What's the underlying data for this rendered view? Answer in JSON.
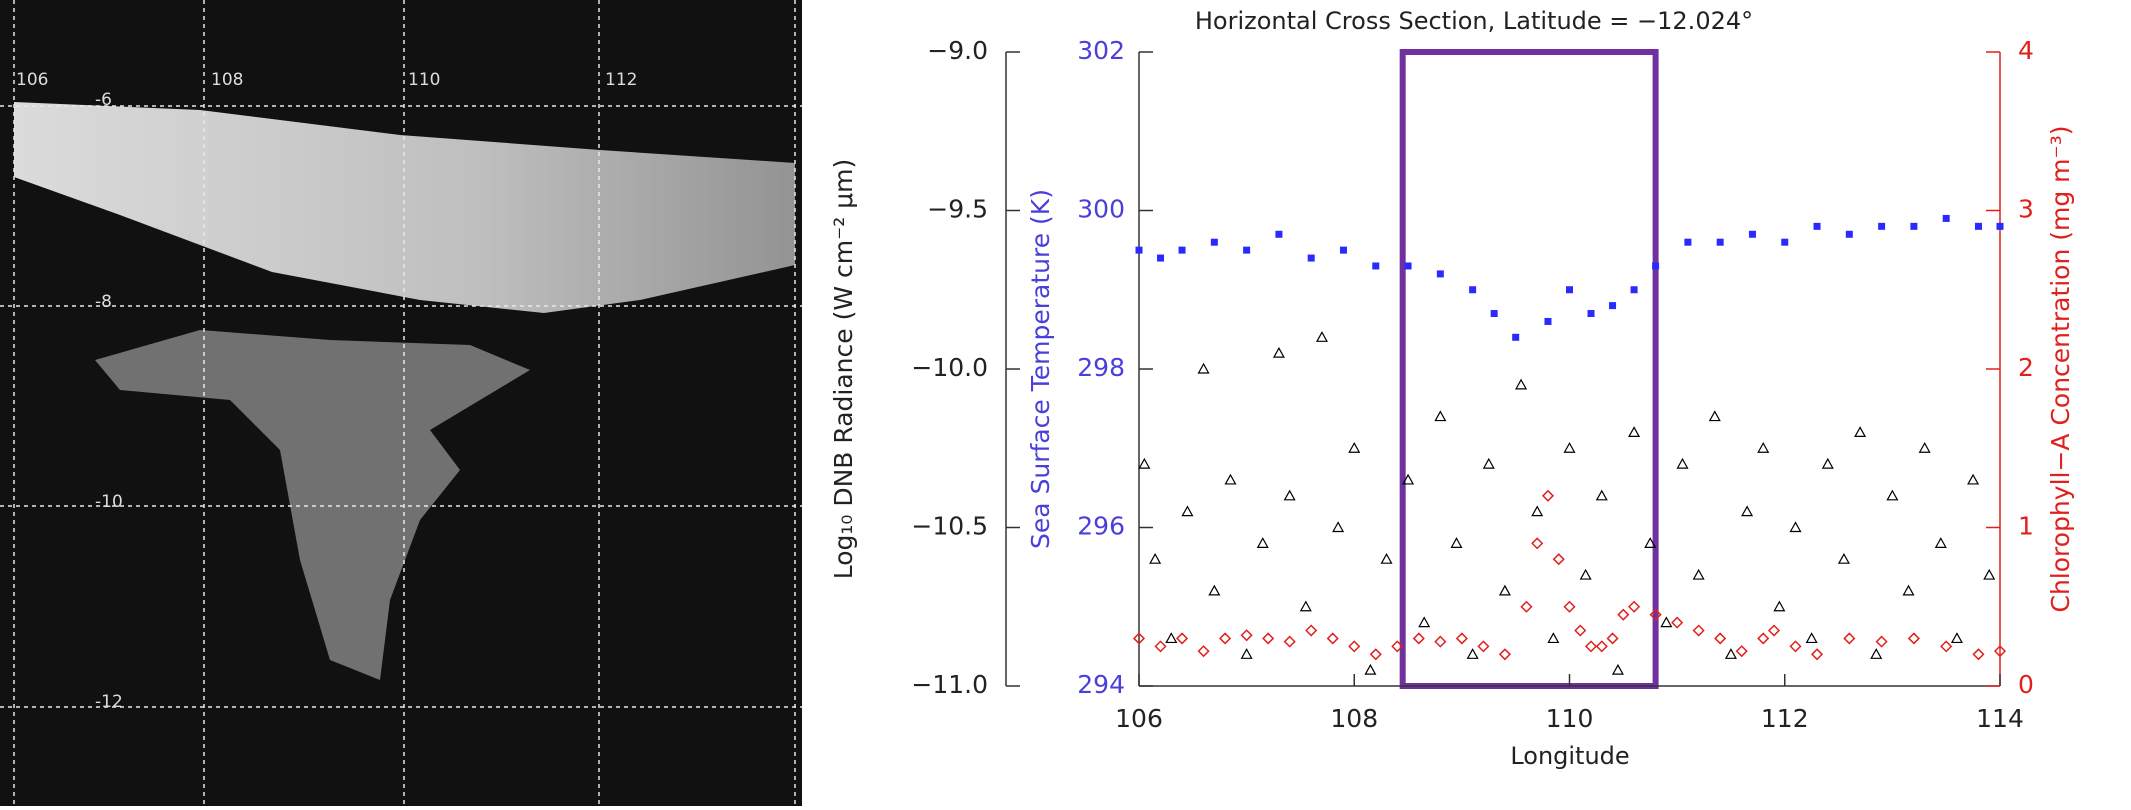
{
  "map": {
    "lon_labels": [
      "106",
      "108",
      "110",
      "112"
    ],
    "lat_labels": [
      "-6",
      "-8",
      "-10",
      "-12"
    ]
  },
  "chart_data": {
    "type": "scatter",
    "title": "Horizontal Cross Section, Latitude = −12.024°",
    "x_label": "Longitude",
    "y_label": "Sea Surface Temperature (K)",
    "y2_label": "Chlorophyll−A Concentration (mg m⁻³)",
    "y3_label": "Log₁₀ DNB Radiance (W cm⁻² μm)",
    "xlim": [
      106,
      114
    ],
    "xticks": [
      106,
      108,
      110,
      112,
      114
    ],
    "ylim": [
      294,
      302
    ],
    "yticks": [
      294,
      296,
      298,
      300,
      302
    ],
    "y_color": "#4b3fd9",
    "y2lim": [
      0,
      4
    ],
    "y2ticks": [
      0,
      1,
      2,
      3,
      4
    ],
    "y2_color": "#e0201c",
    "y3lim": [
      -11,
      -9
    ],
    "y3ticks": [
      {
        "value": -11,
        "label": "−11.0"
      },
      {
        "value": -10.5,
        "label": "−10.5"
      },
      {
        "value": -10,
        "label": "−10.0"
      },
      {
        "value": -9.5,
        "label": "−9.5"
      },
      {
        "value": -9,
        "label": "−9.0"
      }
    ],
    "highlight": {
      "xlim": [
        108.45,
        110.8
      ],
      "color": "#7030a0"
    },
    "series": [
      {
        "marker": "square",
        "color": "#2a2aff",
        "axis": "y",
        "x": [
          106.0,
          106.2,
          106.4,
          106.7,
          107.0,
          107.3,
          107.6,
          107.9,
          108.2,
          108.5,
          108.8,
          109.1,
          109.3,
          109.5,
          109.8,
          110.0,
          110.2,
          110.4,
          110.6,
          110.8,
          111.1,
          111.4,
          111.7,
          112.0,
          112.3,
          112.6,
          112.9,
          113.2,
          113.5,
          113.8,
          114.0
        ],
        "values": [
          299.5,
          299.4,
          299.5,
          299.6,
          299.5,
          299.7,
          299.4,
          299.5,
          299.3,
          299.3,
          299.2,
          299.0,
          298.7,
          298.4,
          298.6,
          299.0,
          298.7,
          298.8,
          299.0,
          299.3,
          299.6,
          299.6,
          299.7,
          299.6,
          299.8,
          299.7,
          299.8,
          299.8,
          299.9,
          299.8,
          299.8
        ]
      },
      {
        "marker": "triangle",
        "color": "#000000",
        "axis": "y3",
        "x": [
          106.05,
          106.15,
          106.3,
          106.45,
          106.6,
          106.7,
          106.85,
          107.0,
          107.15,
          107.3,
          107.4,
          107.55,
          107.7,
          107.85,
          108.0,
          108.15,
          108.3,
          108.5,
          108.65,
          108.8,
          108.95,
          109.1,
          109.25,
          109.4,
          109.55,
          109.7,
          109.85,
          110.0,
          110.15,
          110.3,
          110.45,
          110.6,
          110.75,
          110.9,
          111.05,
          111.2,
          111.35,
          111.5,
          111.65,
          111.8,
          111.95,
          112.1,
          112.25,
          112.4,
          112.55,
          112.7,
          112.85,
          113.0,
          113.15,
          113.3,
          113.45,
          113.6,
          113.75,
          113.9
        ],
        "values": [
          -10.3,
          -10.6,
          -10.85,
          -10.45,
          -10.0,
          -10.7,
          -10.35,
          -10.9,
          -10.55,
          -9.95,
          -10.4,
          -10.75,
          -9.9,
          -10.5,
          -10.25,
          -10.95,
          -10.6,
          -10.35,
          -10.8,
          -10.15,
          -10.55,
          -10.9,
          -10.3,
          -10.7,
          -10.05,
          -10.45,
          -10.85,
          -10.25,
          -10.65,
          -10.4,
          -10.95,
          -10.2,
          -10.55,
          -10.8,
          -10.3,
          -10.65,
          -10.15,
          -10.9,
          -10.45,
          -10.25,
          -10.75,
          -10.5,
          -10.85,
          -10.3,
          -10.6,
          -10.2,
          -10.9,
          -10.4,
          -10.7,
          -10.25,
          -10.55,
          -10.85,
          -10.35,
          -10.65
        ]
      },
      {
        "marker": "diamond",
        "color": "#e0201c",
        "axis": "y2",
        "x": [
          106.0,
          106.2,
          106.4,
          106.6,
          106.8,
          107.0,
          107.2,
          107.4,
          107.6,
          107.8,
          108.0,
          108.2,
          108.4,
          108.6,
          108.8,
          109.0,
          109.2,
          109.4,
          109.6,
          109.7,
          109.8,
          109.9,
          110.0,
          110.1,
          110.2,
          110.3,
          110.4,
          110.5,
          110.6,
          110.8,
          111.0,
          111.2,
          111.4,
          111.6,
          111.8,
          111.9,
          112.1,
          112.3,
          112.6,
          112.9,
          113.2,
          113.5,
          113.8,
          114.0
        ],
        "values": [
          0.3,
          0.25,
          0.3,
          0.22,
          0.3,
          0.32,
          0.3,
          0.28,
          0.35,
          0.3,
          0.25,
          0.2,
          0.25,
          0.3,
          0.28,
          0.3,
          0.25,
          0.2,
          0.5,
          0.9,
          1.2,
          0.8,
          0.5,
          0.35,
          0.25,
          0.25,
          0.3,
          0.45,
          0.5,
          0.45,
          0.4,
          0.35,
          0.3,
          0.22,
          0.3,
          0.35,
          0.25,
          0.2,
          0.3,
          0.28,
          0.3,
          0.25,
          0.2,
          0.22
        ]
      }
    ]
  }
}
